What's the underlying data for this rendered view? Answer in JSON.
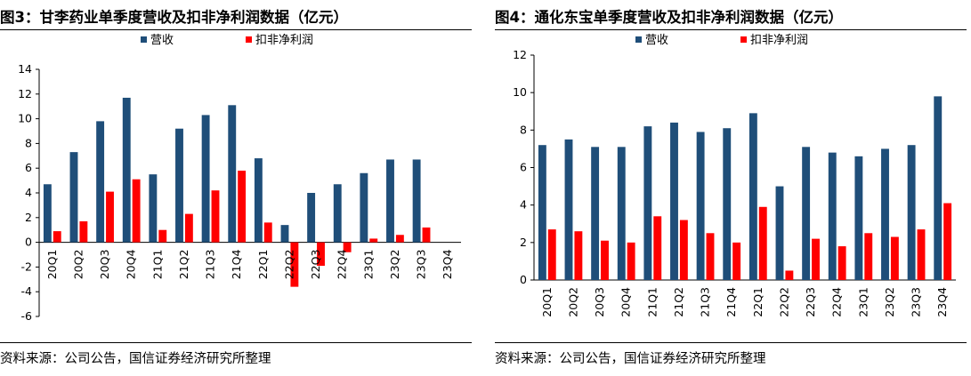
{
  "colors": {
    "revenue": "#1f4e79",
    "profit": "#ff0000",
    "axis": "#000000"
  },
  "source_text": "资料来源：公司公告，国信证券经济研究所整理",
  "chart_data": [
    {
      "type": "bar",
      "title": "图3：甘李药业单季度营收及扣非净利润数据（亿元）",
      "categories": [
        "20Q1",
        "20Q2",
        "20Q3",
        "20Q4",
        "21Q1",
        "21Q2",
        "21Q3",
        "21Q4",
        "22Q1",
        "22Q2",
        "22Q3",
        "22Q4",
        "23Q1",
        "23Q2",
        "23Q3",
        "23Q4"
      ],
      "series": [
        {
          "name": "营收",
          "values": [
            4.7,
            7.3,
            9.8,
            11.7,
            5.5,
            9.2,
            10.3,
            11.1,
            6.8,
            1.4,
            4.0,
            4.7,
            5.6,
            6.7,
            6.7,
            null
          ]
        },
        {
          "name": "扣非净利润",
          "values": [
            0.9,
            1.7,
            4.1,
            5.1,
            1.0,
            2.3,
            4.2,
            5.8,
            1.6,
            -3.6,
            -1.9,
            -0.8,
            0.3,
            0.6,
            1.2,
            null
          ]
        }
      ],
      "ylim": [
        -6,
        14
      ],
      "yticks": [
        -6,
        -4,
        -2,
        0,
        2,
        4,
        6,
        8,
        10,
        12,
        14
      ],
      "xlabel": "",
      "ylabel": "",
      "legend_position": "top-center"
    },
    {
      "type": "bar",
      "title": "图4：通化东宝单季度营收及扣非净利润数据（亿元）",
      "categories": [
        "20Q1",
        "20Q2",
        "20Q3",
        "20Q4",
        "21Q1",
        "21Q2",
        "21Q3",
        "21Q4",
        "22Q1",
        "22Q2",
        "22Q3",
        "22Q4",
        "23Q1",
        "23Q2",
        "23Q3",
        "23Q4"
      ],
      "series": [
        {
          "name": "营收",
          "values": [
            7.2,
            7.5,
            7.1,
            7.1,
            8.2,
            8.4,
            7.9,
            8.1,
            8.9,
            5.0,
            7.1,
            6.8,
            6.6,
            7.0,
            7.2,
            9.8
          ]
        },
        {
          "name": "扣非净利润",
          "values": [
            2.7,
            2.6,
            2.1,
            2.0,
            3.4,
            3.2,
            2.5,
            2.0,
            3.9,
            0.5,
            2.2,
            1.8,
            2.5,
            2.3,
            2.7,
            4.1
          ]
        }
      ],
      "ylim": [
        0,
        12
      ],
      "yticks": [
        0,
        2,
        4,
        6,
        8,
        10,
        12
      ],
      "xlabel": "",
      "ylabel": "",
      "legend_position": "top-center"
    }
  ]
}
